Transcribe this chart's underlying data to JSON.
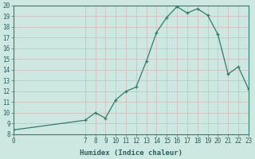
{
  "title": "",
  "xlabel": "Humidex (Indice chaleur)",
  "bg_color": "#cce8e0",
  "grid_color": "#d4b8b8",
  "line_color": "#2e7d6e",
  "marker_color": "#2e7d6e",
  "x_data": [
    0,
    7,
    8,
    9,
    10,
    11,
    12,
    13,
    14,
    15,
    16,
    17,
    18,
    19,
    20,
    21,
    22,
    23
  ],
  "y_data": [
    8.4,
    9.3,
    10.0,
    9.5,
    11.2,
    12.0,
    12.4,
    14.8,
    17.5,
    18.9,
    19.9,
    19.3,
    19.7,
    19.1,
    17.3,
    13.6,
    14.3,
    12.2
  ],
  "ylim": [
    8,
    20
  ],
  "xlim": [
    0,
    23
  ],
  "yticks": [
    8,
    9,
    10,
    11,
    12,
    13,
    14,
    15,
    16,
    17,
    18,
    19,
    20
  ],
  "xticks": [
    0,
    7,
    8,
    9,
    10,
    11,
    12,
    13,
    14,
    15,
    16,
    17,
    18,
    19,
    20,
    21,
    22,
    23
  ],
  "xtick_labels": [
    "0",
    "7",
    "8",
    "9",
    "10",
    "11",
    "12",
    "13",
    "14",
    "15",
    "16",
    "17",
    "18",
    "19",
    "20",
    "21",
    "22",
    "23"
  ],
  "ytick_labels": [
    "8",
    "9",
    "10",
    "11",
    "12",
    "13",
    "14",
    "15",
    "16",
    "17",
    "18",
    "19",
    "20"
  ],
  "font_color": "#2e6060",
  "xlabel_fontsize": 6.5,
  "tick_fontsize": 5.5
}
